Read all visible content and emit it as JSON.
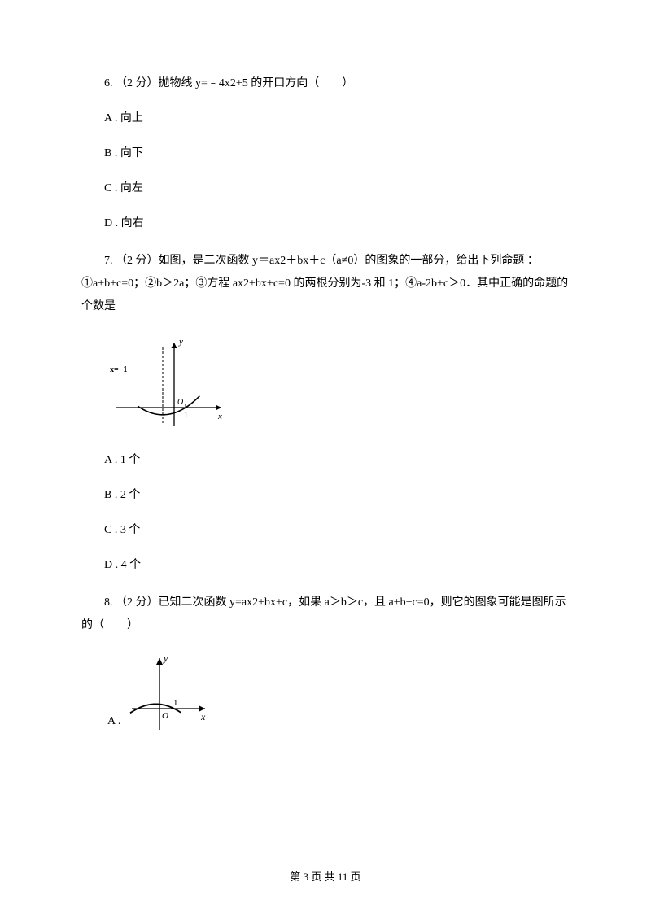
{
  "q6": {
    "stem": "6. （2 分）抛物线 y=﹣4x2+5 的开口方向（　　）",
    "options": {
      "a": "A . 向上",
      "b": "B . 向下",
      "c": "C . 向左",
      "d": "D . 向右"
    }
  },
  "q7": {
    "stem": "7. （2 分）如图，是二次函数 y＝ax2＋bx＋c（a≠0）的图象的一部分，给出下列命题 ：①a+b+c=0；②b＞2a；③方程 ax2+bx+c=0 的两根分别为-3 和 1；④a-2b+c＞0．其中正确的命题的个数是",
    "graph": {
      "type": "parabola",
      "x_intercepts": [
        -3,
        1
      ],
      "vertex_x": -1,
      "opens": "up",
      "axis_label_y": "y",
      "axis_label_x": "x",
      "dashed_line_label": "x=−1",
      "origin_label": "O",
      "xtick_label": "1",
      "stroke_color": "#000000",
      "stroke_width": 1.3,
      "dashed_pattern": "3,2",
      "font_size_axis": 11,
      "font_size_label": 10
    },
    "options": {
      "a": "A . 1 个",
      "b": "B . 2 个",
      "c": "C . 3 个",
      "d": "D . 4 个"
    }
  },
  "q8": {
    "stem": "8. （2 分）已知二次函数 y=ax2+bx+c，如果 a＞b＞c，且 a+b+c=0，则它的图象可能是图所示的（　　）",
    "option_a_label": "A .",
    "graph_a": {
      "type": "parabola",
      "opens": "down",
      "x_intercepts_shown": [
        1
      ],
      "axis_label_y": "y",
      "axis_label_x": "x",
      "origin_label": "O",
      "xtick_label": "1",
      "stroke_color": "#000000",
      "stroke_width": 1.3,
      "font_size_axis": 12,
      "font_size_label": 11
    }
  },
  "footer": "第 3 页 共 11 页",
  "colors": {
    "text": "#000000",
    "background": "#ffffff"
  }
}
